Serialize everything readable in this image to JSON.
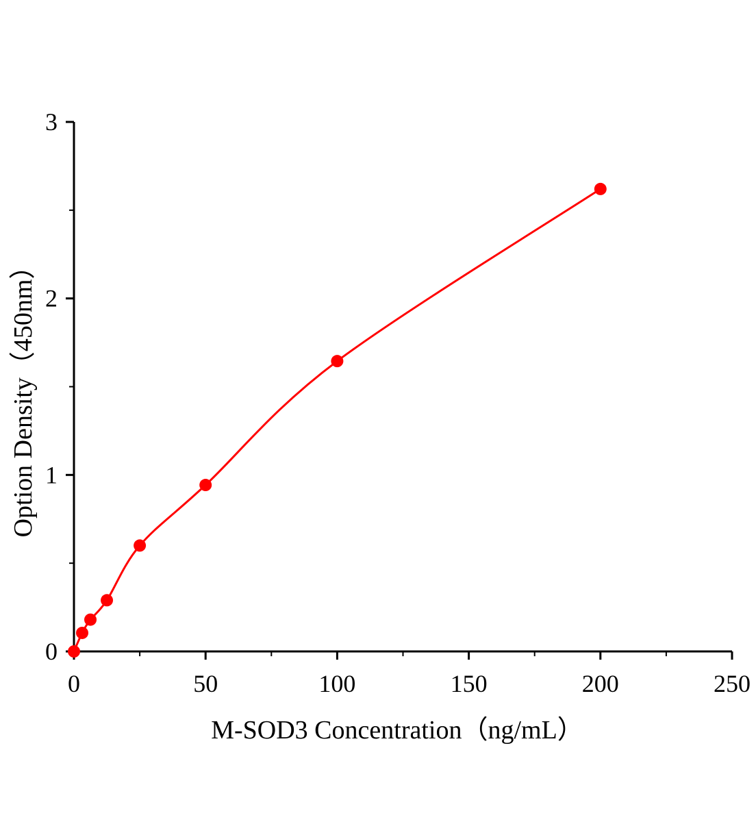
{
  "chart_data": {
    "type": "scatter",
    "title": "",
    "xlabel": "M-SOD3 Concentration（ng/mL）",
    "ylabel": "Option Density（450nm）",
    "xlim": [
      0,
      250
    ],
    "ylim": [
      0,
      3
    ],
    "xticks": [
      0,
      50,
      100,
      150,
      200,
      250
    ],
    "yticks": [
      0,
      1,
      2,
      3
    ],
    "grid": false,
    "legend": "none",
    "series": [
      {
        "color": "#ff0000",
        "fit_line": true,
        "x": [
          0,
          3.125,
          6.25,
          12.5,
          25,
          50,
          100,
          200
        ],
        "y": [
          0.0,
          0.105,
          0.18,
          0.29,
          0.6,
          0.943,
          1.645,
          2.62
        ]
      }
    ]
  }
}
